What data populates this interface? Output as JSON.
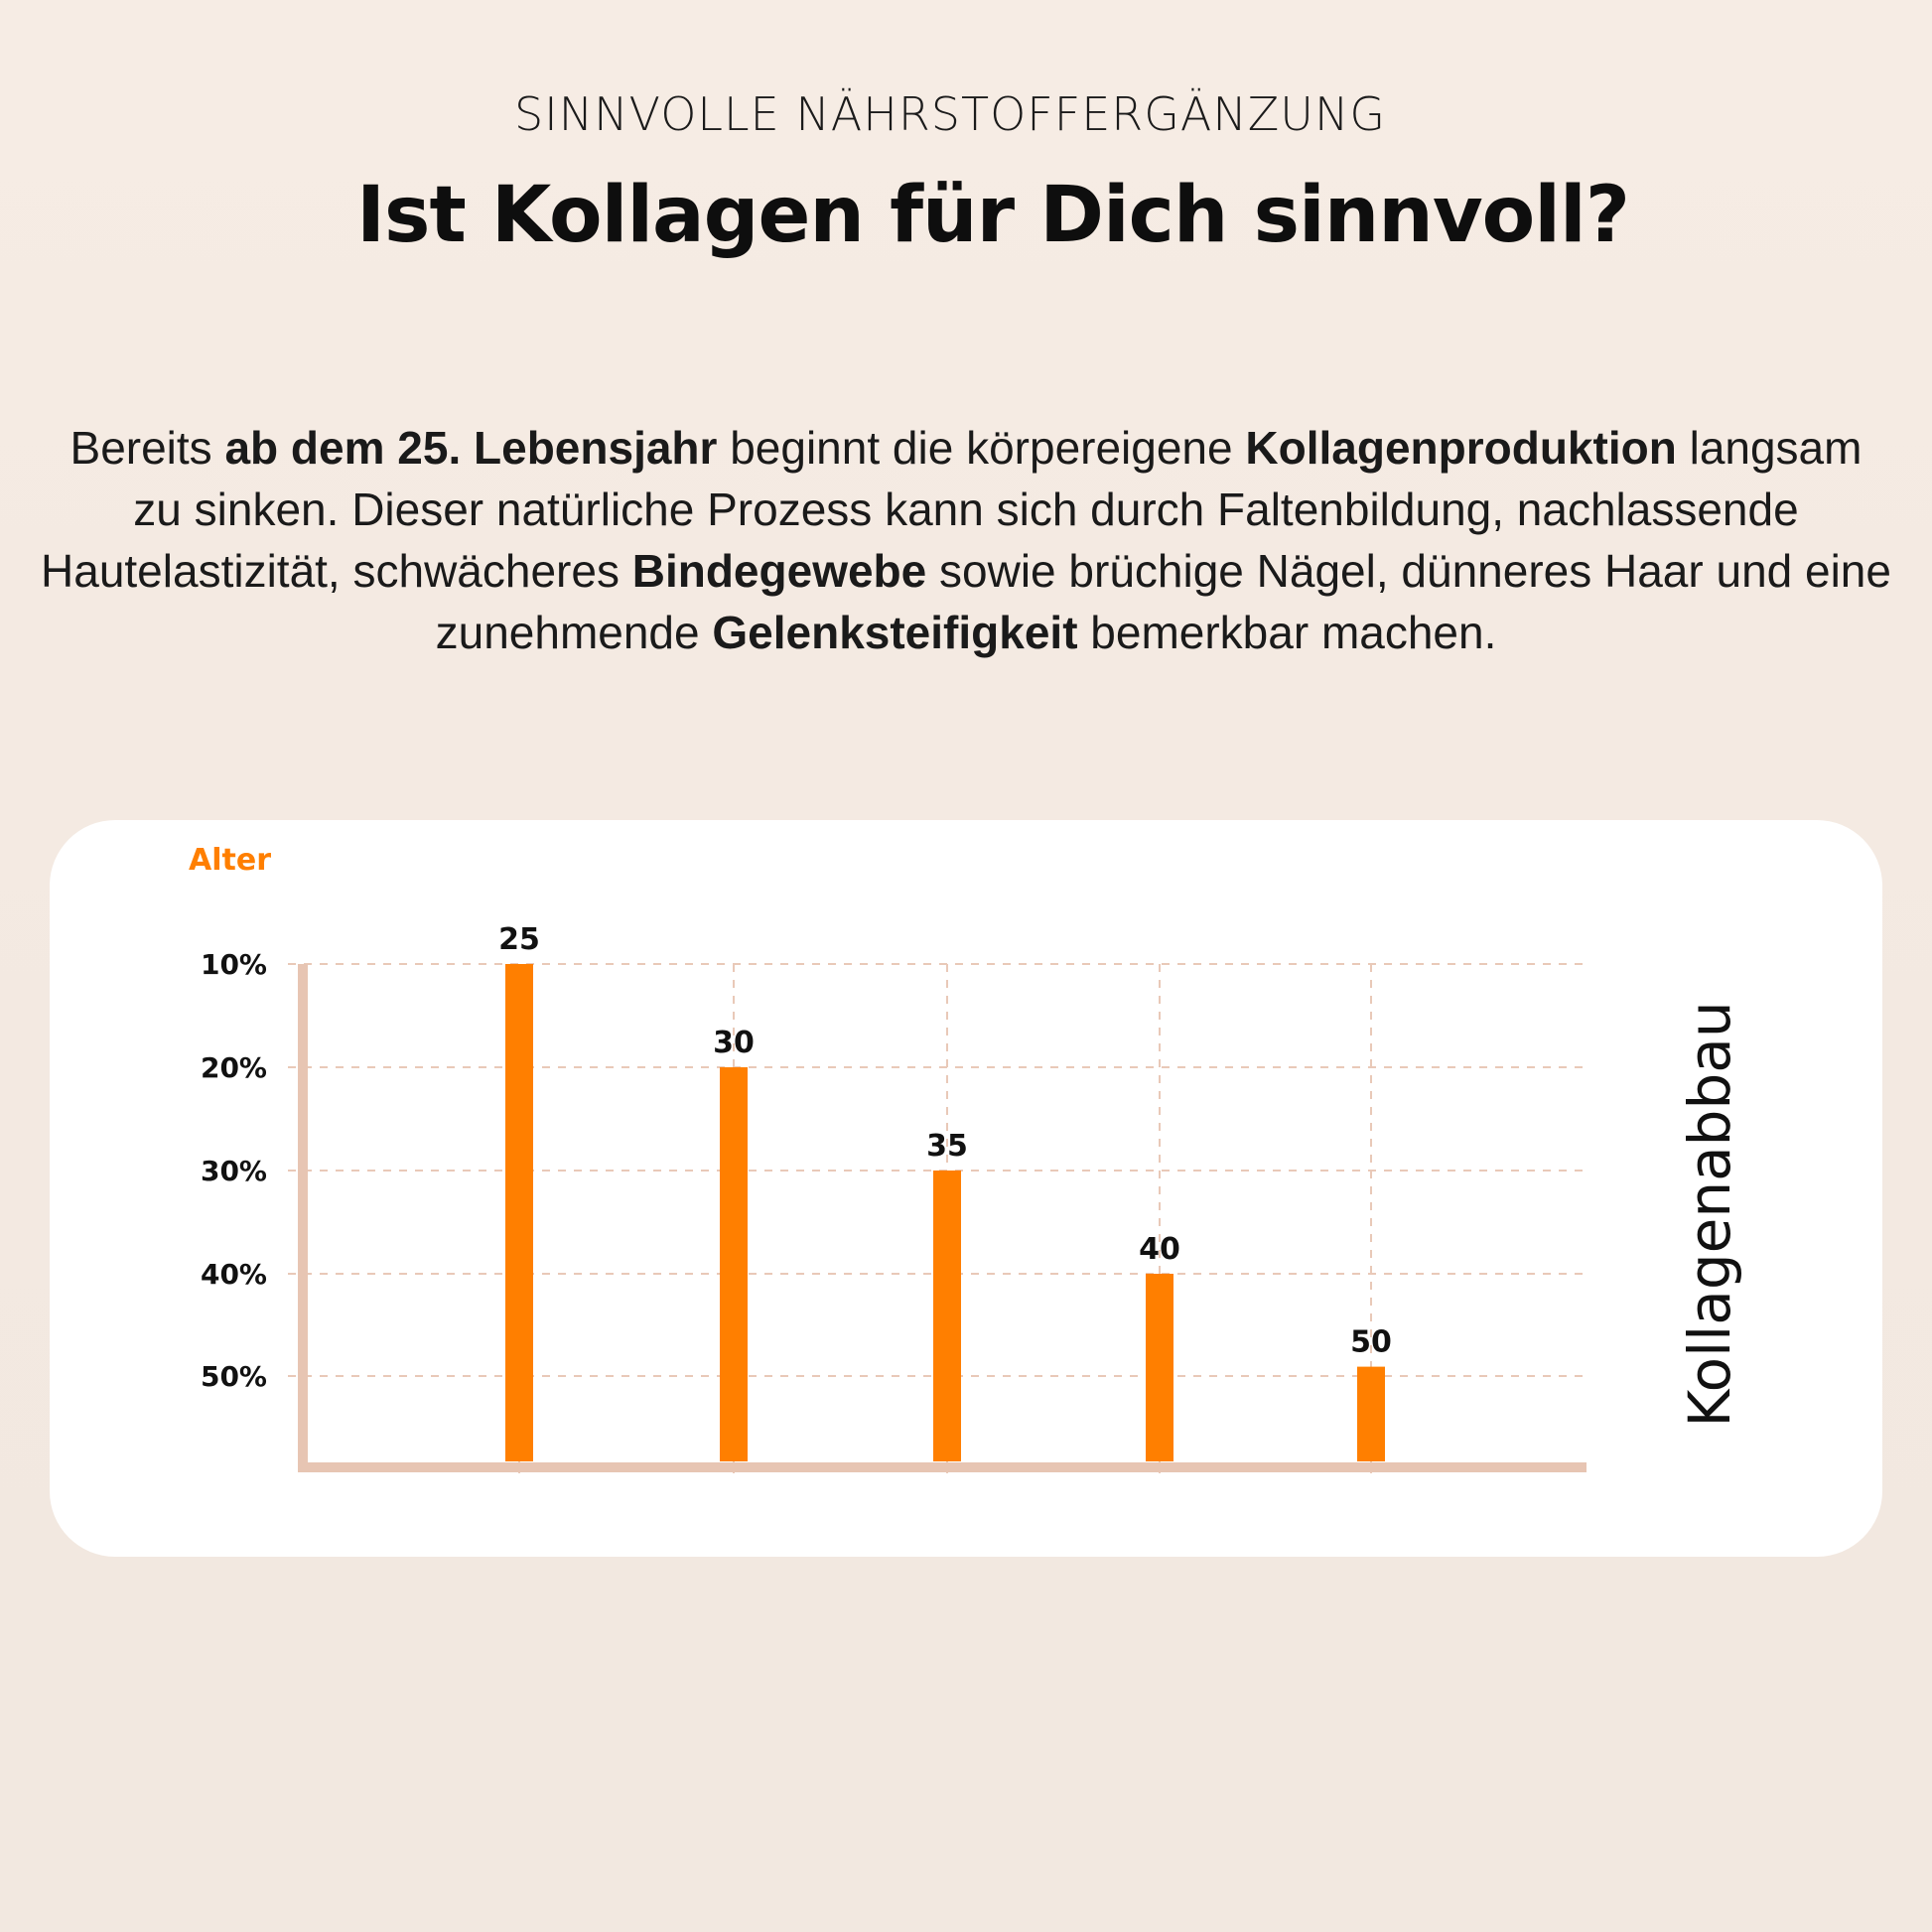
{
  "header": {
    "kicker": "SINNVOLLE NÄHRSTOFFERGÄNZUNG",
    "title": "Ist Kollagen für Dich sinnvoll?"
  },
  "intro": {
    "segments": [
      {
        "text": "Bereits ",
        "bold": false
      },
      {
        "text": "ab dem 25. Lebensjahr",
        "bold": true
      },
      {
        "text": " beginnt die körpereigene ",
        "bold": false
      },
      {
        "text": "Kollagenproduktion",
        "bold": true
      },
      {
        "text": " langsam zu sinken. Dieser natürliche Prozess kann sich durch Faltenbildung, nachlassende Hautelastizität, schwächeres ",
        "bold": false
      },
      {
        "text": "Bindegewebe",
        "bold": true
      },
      {
        "text": " sowie brüchige Nägel, dünneres Haar und eine zunehmende ",
        "bold": false
      },
      {
        "text": "Gelenksteifigkeit",
        "bold": true
      },
      {
        "text": " bemerkbar machen.",
        "bold": false
      }
    ]
  },
  "chart_data": {
    "type": "bar",
    "title": "",
    "axis_title": "Alter",
    "side_label": "Kollagenabbau",
    "y_tick_labels": [
      "10%",
      "20%",
      "30%",
      "40%",
      "50%"
    ],
    "y_ticks": [
      10,
      20,
      30,
      40,
      50
    ],
    "y_axis_inverted": true,
    "categories": [
      "25",
      "30",
      "35",
      "40",
      "50"
    ],
    "values": [
      10,
      20,
      30,
      40,
      49
    ],
    "grid": true,
    "colors": {
      "bar": "#ff7f00",
      "axis": "#e7c5b3",
      "grid": "#e9c9b8",
      "axis_title": "#ff7f00"
    }
  }
}
